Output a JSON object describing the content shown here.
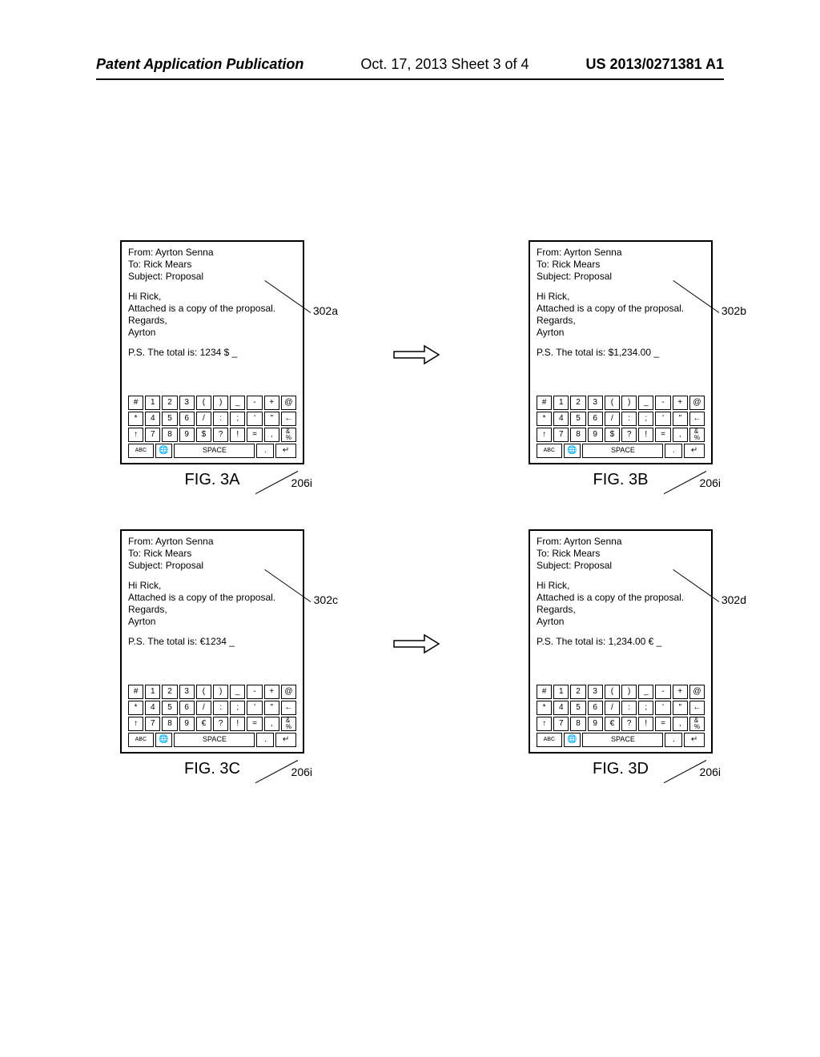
{
  "header": {
    "left": "Patent Application Publication",
    "center": "Oct. 17, 2013  Sheet 3 of 4",
    "right": "US 2013/0271381 A1"
  },
  "figures": {
    "a": {
      "ref_device": "302a",
      "ref_space": "206i",
      "caption": "FIG. 3A",
      "email": {
        "from": "From: Ayrton Senna",
        "to": "To: Rick Mears",
        "subject": "Subject: Proposal",
        "greeting": "Hi Rick,",
        "body": "Attached is a copy of the proposal.",
        "closing": "Regards,",
        "signature": "Ayrton",
        "ps": "P.S. The total is: 1234 $ _"
      },
      "currency_key": "$"
    },
    "b": {
      "ref_device": "302b",
      "ref_space": "206i",
      "caption": "FIG. 3B",
      "email": {
        "from": "From: Ayrton Senna",
        "to": "To: Rick Mears",
        "subject": "Subject: Proposal",
        "greeting": "Hi Rick,",
        "body": "Attached is a copy of the proposal.",
        "closing": "Regards,",
        "signature": "Ayrton",
        "ps": "P.S. The total is: $1,234.00 _"
      },
      "currency_key": "$"
    },
    "c": {
      "ref_device": "302c",
      "ref_space": "206i",
      "caption": "FIG. 3C",
      "email": {
        "from": "From: Ayrton Senna",
        "to": "To: Rick Mears",
        "subject": "Subject: Proposal",
        "greeting": "Hi Rick,",
        "body": "Attached is a copy of the proposal.",
        "closing": "Regards,",
        "signature": "Ayrton",
        "ps": "P.S. The total is: €1234 _"
      },
      "currency_key": "€"
    },
    "d": {
      "ref_device": "302d",
      "ref_space": "206i",
      "caption": "FIG. 3D",
      "email": {
        "from": "From: Ayrton Senna",
        "to": "To: Rick Mears",
        "subject": "Subject: Proposal",
        "greeting": "Hi Rick,",
        "body": "Attached is a copy of the proposal.",
        "closing": "Regards,",
        "signature": "Ayrton",
        "ps": "P.S. The total is: 1,234.00 € _"
      },
      "currency_key": "€"
    }
  },
  "keys": {
    "row1": [
      "#",
      "1",
      "2",
      "3",
      "(",
      ")",
      "_",
      "-",
      "+",
      "@"
    ],
    "row2": [
      "*",
      "4",
      "5",
      "6",
      "/",
      ":",
      ";",
      "'",
      "\"",
      "←"
    ],
    "row3_pre": [
      "↑",
      "7",
      "8",
      "9"
    ],
    "row3_post": [
      "?",
      "!",
      "=",
      ",",
      "&\n%"
    ],
    "row4": {
      "abc": "ABC",
      "globe": "🌐",
      "space": "SPACE",
      "dot": ".",
      "enter": "↵"
    }
  }
}
